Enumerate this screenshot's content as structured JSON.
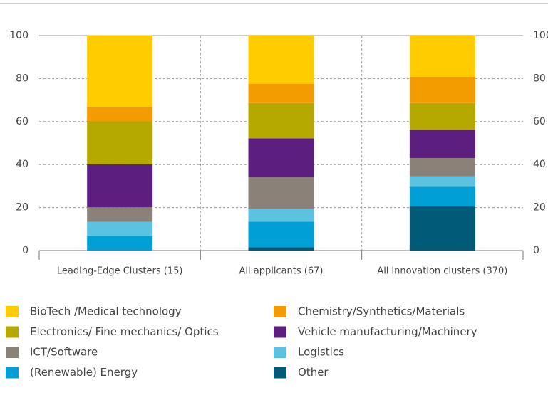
{
  "chart_data": {
    "type": "stacked_bar",
    "categories": [
      "Leading-Edge Clusters (15)",
      "All applicants (67)",
      "All innovation clusters (370)"
    ],
    "series": [
      {
        "name": "BioTech /Medical technology",
        "color": "#ffcc00",
        "values": [
          33.3,
          22.4,
          19.2
        ]
      },
      {
        "name": "Chemistry/Synthetics/Materials",
        "color": "#f39c00",
        "values": [
          6.7,
          9,
          12.2
        ]
      },
      {
        "name": "Electronics/ Fine mechanics/ Optics",
        "color": "#b5a900",
        "values": [
          20,
          16.4,
          12.4
        ]
      },
      {
        "name": "Vehicle manufacturing/Machinery",
        "color": "#5c1f80",
        "values": [
          20,
          17.9,
          13.2
        ]
      },
      {
        "name": "ICT/Software",
        "color": "#8a8178",
        "values": [
          6.7,
          14.9,
          8.4
        ]
      },
      {
        "name": "Logistics",
        "color": "#5bc3e0",
        "values": [
          6.7,
          6,
          4.9
        ]
      },
      {
        "name": "(Renewable) Energy",
        "color": "#009fd6",
        "values": [
          6.7,
          11.9,
          9.2
        ]
      },
      {
        "name": "Other",
        "color": "#005a78",
        "values": [
          0,
          1.5,
          20.5
        ]
      }
    ],
    "ylim": [
      0,
      100
    ],
    "yticks": [
      0,
      20,
      40,
      60,
      80,
      100
    ],
    "grid": true
  }
}
